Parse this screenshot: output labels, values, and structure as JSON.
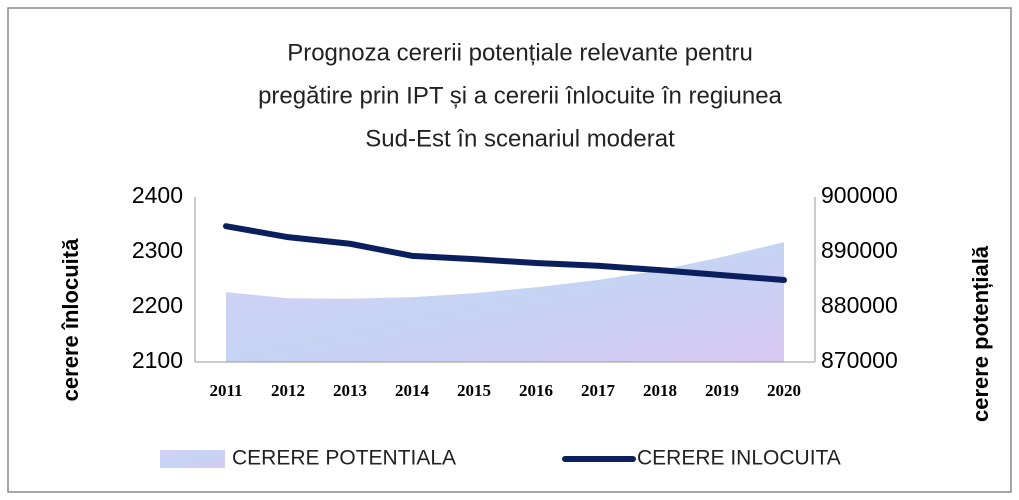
{
  "chart_data": {
    "type": "combo",
    "title": [
      "Prognoza cererii potențiale relevante pentru",
      "pregătire prin IPT și a cererii înlocuite în regiunea",
      "Sud-Est în scenariul moderat"
    ],
    "y_label": "cerere înlocuită",
    "y2_label": "cerere potențială",
    "categories": [
      "2011",
      "2012",
      "2013",
      "2014",
      "2015",
      "2016",
      "2017",
      "2018",
      "2019",
      "2020"
    ],
    "series": [
      {
        "name": "CERERE POTENTIALA",
        "type": "area",
        "axis": "y2",
        "color": "#c9c9f2",
        "values": [
          882700,
          881600,
          881500,
          881800,
          882500,
          883600,
          884900,
          886700,
          889100,
          891800
        ]
      },
      {
        "name": "CERERE INLOCUITA",
        "type": "line",
        "axis": "y",
        "color": "#0b1f5e",
        "values": [
          2347,
          2327,
          2315,
          2293,
          2287,
          2280,
          2275,
          2267,
          2258,
          2249
        ]
      }
    ],
    "ylim": [
      2100,
      2400
    ],
    "yticks": [
      2100,
      2200,
      2300,
      2400
    ],
    "y2lim": [
      870000,
      900000
    ],
    "y2ticks": [
      870000,
      880000,
      890000,
      900000
    ],
    "legend": "bottom",
    "grid": false
  }
}
